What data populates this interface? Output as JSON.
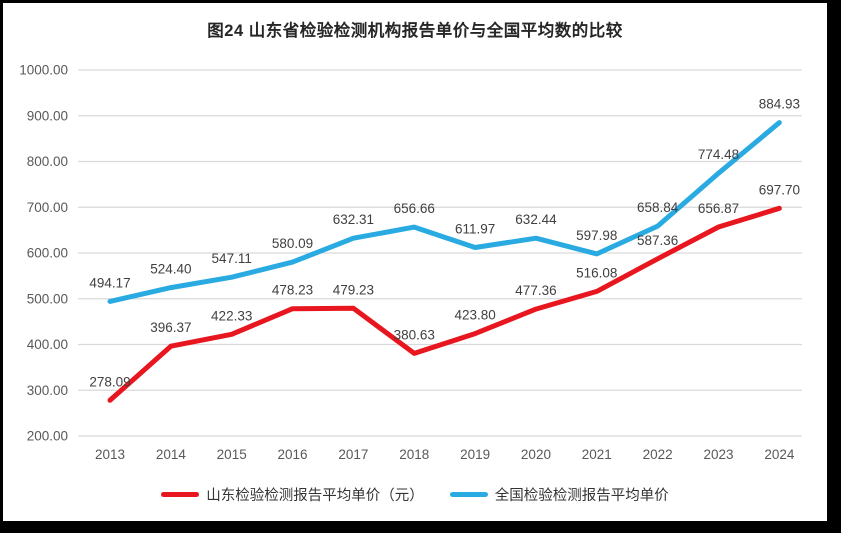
{
  "frame": {
    "background_color": "#000000",
    "panel_color": "#ffffff"
  },
  "chart_data": {
    "type": "line",
    "title": "图24  山东省检验检测机构报告单价与全国平均数的比较",
    "xlabel": "",
    "ylabel": "",
    "categories": [
      "2013",
      "2014",
      "2015",
      "2016",
      "2017",
      "2018",
      "2019",
      "2020",
      "2021",
      "2022",
      "2023",
      "2024"
    ],
    "series": [
      {
        "name": "山东检验检测报告平均单价（元）",
        "color": "#e8171f",
        "values": [
          278.09,
          396.37,
          422.33,
          478.23,
          479.23,
          380.63,
          423.8,
          477.36,
          516.08,
          587.36,
          656.87,
          697.7
        ]
      },
      {
        "name": "全国检验检测报告平均单价",
        "color": "#29abe2",
        "values": [
          494.17,
          524.4,
          547.11,
          580.09,
          632.31,
          656.66,
          611.97,
          632.44,
          597.98,
          658.84,
          774.48,
          884.93
        ]
      }
    ],
    "ylim": [
      200,
      1000
    ],
    "ytick_step": 100,
    "decimals": 2,
    "grid": true,
    "legend_position": "bottom",
    "colors": {
      "gridline": "#d9d9d9",
      "axis_text": "#595959",
      "data_label_text": "#404040",
      "title_text": "#262626"
    }
  }
}
